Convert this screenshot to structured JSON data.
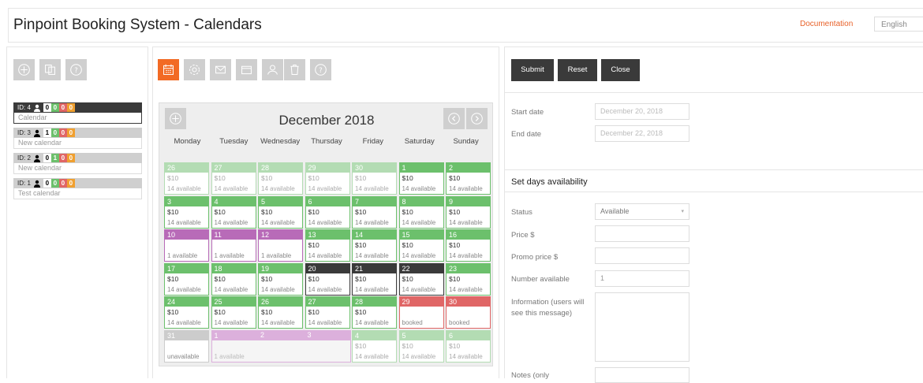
{
  "header": {
    "title": "Pinpoint Booking System - Calendars",
    "documentation": "Documentation",
    "language": "English"
  },
  "calendars": [
    {
      "id_label": "ID: 4",
      "c_black": "0",
      "c_green": "0",
      "c_red": "0",
      "c_orange": "0",
      "name": "Calendar",
      "selected": true
    },
    {
      "id_label": "ID: 3",
      "c_black": "1",
      "c_green": "0",
      "c_red": "0",
      "c_orange": "0",
      "name": "New calendar",
      "selected": false
    },
    {
      "id_label": "ID: 2",
      "c_black": "0",
      "c_green": "1",
      "c_red": "0",
      "c_orange": "0",
      "name": "New calendar",
      "selected": false
    },
    {
      "id_label": "ID: 1",
      "c_black": "0",
      "c_green": "0",
      "c_red": "0",
      "c_orange": "0",
      "name": "Test calendar",
      "selected": false
    }
  ],
  "calendar": {
    "month": "December 2018",
    "weekdays": [
      "Monday",
      "Tuesday",
      "Wednesday",
      "Thursday",
      "Friday",
      "Saturday",
      "Sunday"
    ],
    "days": [
      {
        "num": "26",
        "price": "$10",
        "avail": "14 available",
        "status": "past"
      },
      {
        "num": "27",
        "price": "$10",
        "avail": "14 available",
        "status": "past"
      },
      {
        "num": "28",
        "price": "$10",
        "avail": "14 available",
        "status": "past"
      },
      {
        "num": "29",
        "price": "$10",
        "avail": "14 available",
        "status": "past"
      },
      {
        "num": "30",
        "price": "$10",
        "avail": "14 available",
        "status": "past"
      },
      {
        "num": "1",
        "price": "$10",
        "avail": "14 available",
        "status": "green"
      },
      {
        "num": "2",
        "price": "$10",
        "avail": "14 available",
        "status": "green"
      },
      {
        "num": "3",
        "price": "$10",
        "avail": "14 available",
        "status": "green"
      },
      {
        "num": "4",
        "price": "$10",
        "avail": "14 available",
        "status": "green"
      },
      {
        "num": "5",
        "price": "$10",
        "avail": "14 available",
        "status": "green"
      },
      {
        "num": "6",
        "price": "$10",
        "avail": "14 available",
        "status": "green"
      },
      {
        "num": "7",
        "price": "$10",
        "avail": "14 available",
        "status": "green"
      },
      {
        "num": "8",
        "price": "$10",
        "avail": "14 available",
        "status": "green"
      },
      {
        "num": "9",
        "price": "$10",
        "avail": "14 available",
        "status": "green"
      },
      {
        "num": "10",
        "price": "",
        "avail": "1 available",
        "status": "purple"
      },
      {
        "num": "11",
        "price": "",
        "avail": "1 available",
        "status": "purple"
      },
      {
        "num": "12",
        "price": "",
        "avail": "1 available",
        "status": "purple"
      },
      {
        "num": "13",
        "price": "$10",
        "avail": "14 available",
        "status": "green"
      },
      {
        "num": "14",
        "price": "$10",
        "avail": "14 available",
        "status": "green"
      },
      {
        "num": "15",
        "price": "$10",
        "avail": "14 available",
        "status": "green"
      },
      {
        "num": "16",
        "price": "$10",
        "avail": "14 available",
        "status": "green"
      },
      {
        "num": "17",
        "price": "$10",
        "avail": "14 available",
        "status": "green"
      },
      {
        "num": "18",
        "price": "$10",
        "avail": "14 available",
        "status": "green"
      },
      {
        "num": "19",
        "price": "$10",
        "avail": "14 available",
        "status": "green"
      },
      {
        "num": "20",
        "price": "$10",
        "avail": "14 available",
        "status": "dark"
      },
      {
        "num": "21",
        "price": "$10",
        "avail": "14 available",
        "status": "dark"
      },
      {
        "num": "22",
        "price": "$10",
        "avail": "14 available",
        "status": "dark"
      },
      {
        "num": "23",
        "price": "$10",
        "avail": "14 available",
        "status": "green"
      },
      {
        "num": "24",
        "price": "$10",
        "avail": "14 available",
        "status": "green"
      },
      {
        "num": "25",
        "price": "$10",
        "avail": "14 available",
        "status": "green"
      },
      {
        "num": "26",
        "price": "$10",
        "avail": "14 available",
        "status": "green"
      },
      {
        "num": "27",
        "price": "$10",
        "avail": "14 available",
        "status": "green"
      },
      {
        "num": "28",
        "price": "$10",
        "avail": "14 available",
        "status": "green"
      },
      {
        "num": "29",
        "price": "",
        "avail": "booked",
        "status": "red"
      },
      {
        "num": "30",
        "price": "",
        "avail": "booked",
        "status": "red"
      },
      {
        "num": "31",
        "price": "",
        "avail": "unavailable",
        "status": "grey"
      },
      {
        "num": "1",
        "price": "",
        "avail": "1 available",
        "status": "lpurple"
      },
      {
        "num": "2",
        "price": "",
        "avail": "",
        "status": "lpurple"
      },
      {
        "num": "3",
        "price": "",
        "avail": "",
        "status": "lpurple"
      },
      {
        "num": "4",
        "price": "$10",
        "avail": "14 available",
        "status": "past"
      },
      {
        "num": "5",
        "price": "$10",
        "avail": "14 available",
        "status": "past"
      },
      {
        "num": "6",
        "price": "$10",
        "avail": "14 available",
        "status": "past"
      }
    ]
  },
  "form": {
    "submit": "Submit",
    "reset": "Reset",
    "close": "Close",
    "start_label": "Start date",
    "start_value": "December 20, 2018",
    "end_label": "End date",
    "end_value": "December 22, 2018",
    "section_title": "Set days availability",
    "status_label": "Status",
    "status_value": "Available",
    "price_label": "Price $",
    "promo_label": "Promo price $",
    "number_label": "Number available",
    "number_value": "1",
    "info_label": "Information (users will see this message)",
    "notes_label": "Notes (only"
  },
  "colors": {
    "accent": "#f26a24",
    "green": "#6cc06c",
    "purple": "#b86bb8",
    "dark": "#3a3a3a",
    "red": "#e06666"
  }
}
